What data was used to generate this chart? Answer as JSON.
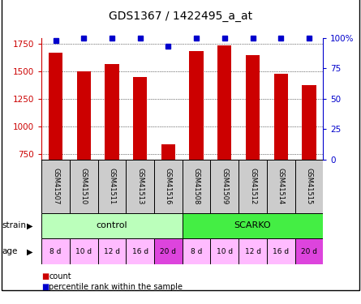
{
  "title": "GDS1367 / 1422495_a_at",
  "samples": [
    "GSM41507",
    "GSM41510",
    "GSM41511",
    "GSM41513",
    "GSM41516",
    "GSM41508",
    "GSM41509",
    "GSM41512",
    "GSM41514",
    "GSM41515"
  ],
  "counts": [
    1670,
    1500,
    1565,
    1450,
    840,
    1680,
    1730,
    1645,
    1480,
    1375
  ],
  "percentiles": [
    98,
    100,
    100,
    100,
    93,
    100,
    100,
    100,
    100,
    100
  ],
  "ylim_left": [
    700,
    1800
  ],
  "ylim_right": [
    0,
    100
  ],
  "yticks_left": [
    750,
    1000,
    1250,
    1500,
    1750
  ],
  "yticks_right": [
    0,
    25,
    50,
    75,
    100
  ],
  "bar_color": "#cc0000",
  "dot_color": "#0000cc",
  "bar_width": 0.5,
  "strain_control": "control",
  "strain_scarko": "SCARKO",
  "ages": [
    "8 d",
    "10 d",
    "12 d",
    "16 d",
    "20 d"
  ],
  "strain_light_green": "#bbffbb",
  "strain_green": "#44ee44",
  "age_pink_light": "#ffbbff",
  "age_pink_dark": "#dd44dd",
  "sample_bg": "#cccccc",
  "legend_count_color": "#cc0000",
  "legend_percentile_color": "#0000cc",
  "fig_bg": "#ffffff",
  "border_color": "#000000"
}
